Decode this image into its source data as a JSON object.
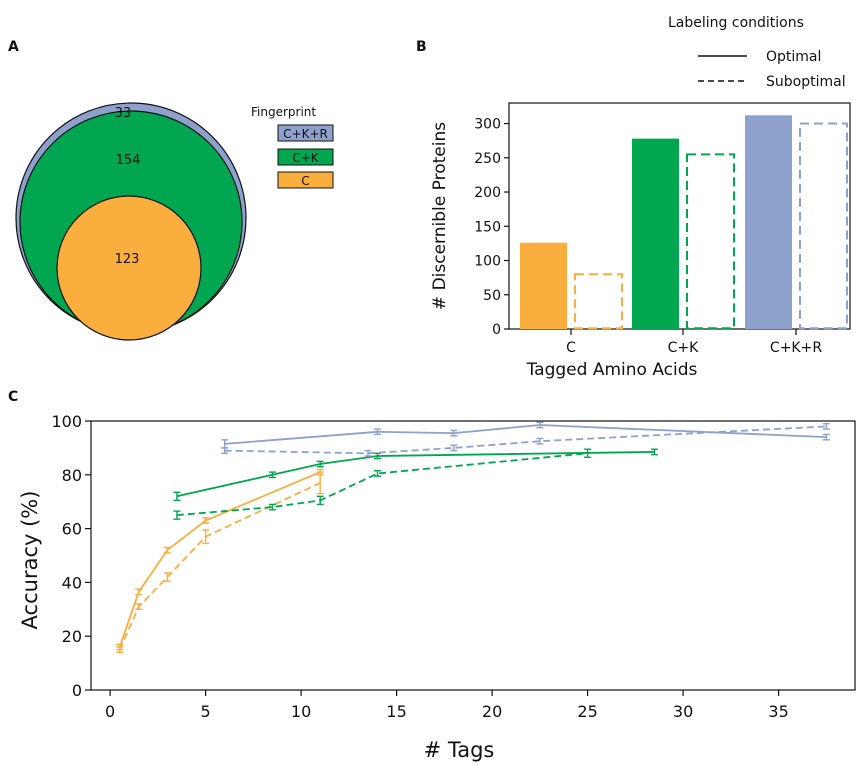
{
  "panels": {
    "a": "A",
    "b": "B",
    "c": "C"
  },
  "colors": {
    "C": "#f9ae3d",
    "C+K": "#00a650",
    "C+K+R": "#8ea0cc"
  },
  "venn": {
    "legend_title": "Fingerprint",
    "regions": [
      {
        "label": "C+K+R",
        "count": "33"
      },
      {
        "label": "C+K",
        "count": "154"
      },
      {
        "label": "C",
        "count": "123"
      }
    ]
  },
  "legend": {
    "title": "Labeling conditions",
    "optimal": "Optimal",
    "suboptimal": "Suboptimal"
  },
  "chart_data": [
    {
      "type": "bar",
      "categories": [
        "C",
        "C+K",
        "C+K+R"
      ],
      "series": [
        {
          "name": "Optimal",
          "values": [
            126,
            278,
            312
          ]
        },
        {
          "name": "Suboptimal",
          "values": [
            80,
            255,
            300
          ]
        }
      ],
      "xlabel": "Tagged Amino Acids",
      "ylabel": "# Discernible Proteins",
      "ylim": [
        0,
        330
      ],
      "yticks": [
        0,
        50,
        100,
        150,
        200,
        250,
        300
      ]
    },
    {
      "type": "line",
      "xlabel": "# Tags",
      "ylabel": "Accuracy (%)",
      "xlim": [
        -1,
        39
      ],
      "ylim": [
        0,
        100
      ],
      "xticks": [
        0,
        5,
        10,
        15,
        20,
        25,
        30,
        35
      ],
      "yticks": [
        0,
        20,
        40,
        60,
        80,
        100
      ],
      "series": [
        {
          "group": "C",
          "condition": "Optimal",
          "x": [
            0.5,
            1.5,
            3,
            5,
            11
          ],
          "y": [
            16,
            36.5,
            52,
            63,
            81
          ],
          "err": [
            1,
            1,
            1,
            1,
            1
          ]
        },
        {
          "group": "C",
          "condition": "Suboptimal",
          "x": [
            0.5,
            1.5,
            3,
            5,
            11
          ],
          "y": [
            15,
            31,
            42,
            57,
            77
          ],
          "err": [
            1,
            1,
            1.5,
            2.5,
            4
          ]
        },
        {
          "group": "C+K",
          "condition": "Optimal",
          "x": [
            3.5,
            8.5,
            11,
            14,
            28.5
          ],
          "y": [
            72,
            80,
            84,
            87,
            88.5
          ],
          "err": [
            1.5,
            1,
            1,
            1,
            1
          ]
        },
        {
          "group": "C+K",
          "condition": "Suboptimal",
          "x": [
            3.5,
            8.5,
            11,
            14,
            25
          ],
          "y": [
            65,
            68,
            70.5,
            80.5,
            88
          ],
          "err": [
            1.5,
            1,
            1.5,
            1,
            1.5
          ]
        },
        {
          "group": "C+K+R",
          "condition": "Optimal",
          "x": [
            6,
            14,
            18,
            22.5,
            37.5
          ],
          "y": [
            91.5,
            96,
            95.5,
            98.5,
            94
          ],
          "err": [
            1.5,
            1,
            1,
            1,
            1
          ]
        },
        {
          "group": "C+K+R",
          "condition": "Suboptimal",
          "x": [
            6,
            13.5,
            18,
            22.5,
            37.5
          ],
          "y": [
            89,
            88,
            90,
            92.5,
            98
          ],
          "err": [
            1,
            1,
            1,
            1,
            1
          ]
        }
      ]
    }
  ]
}
